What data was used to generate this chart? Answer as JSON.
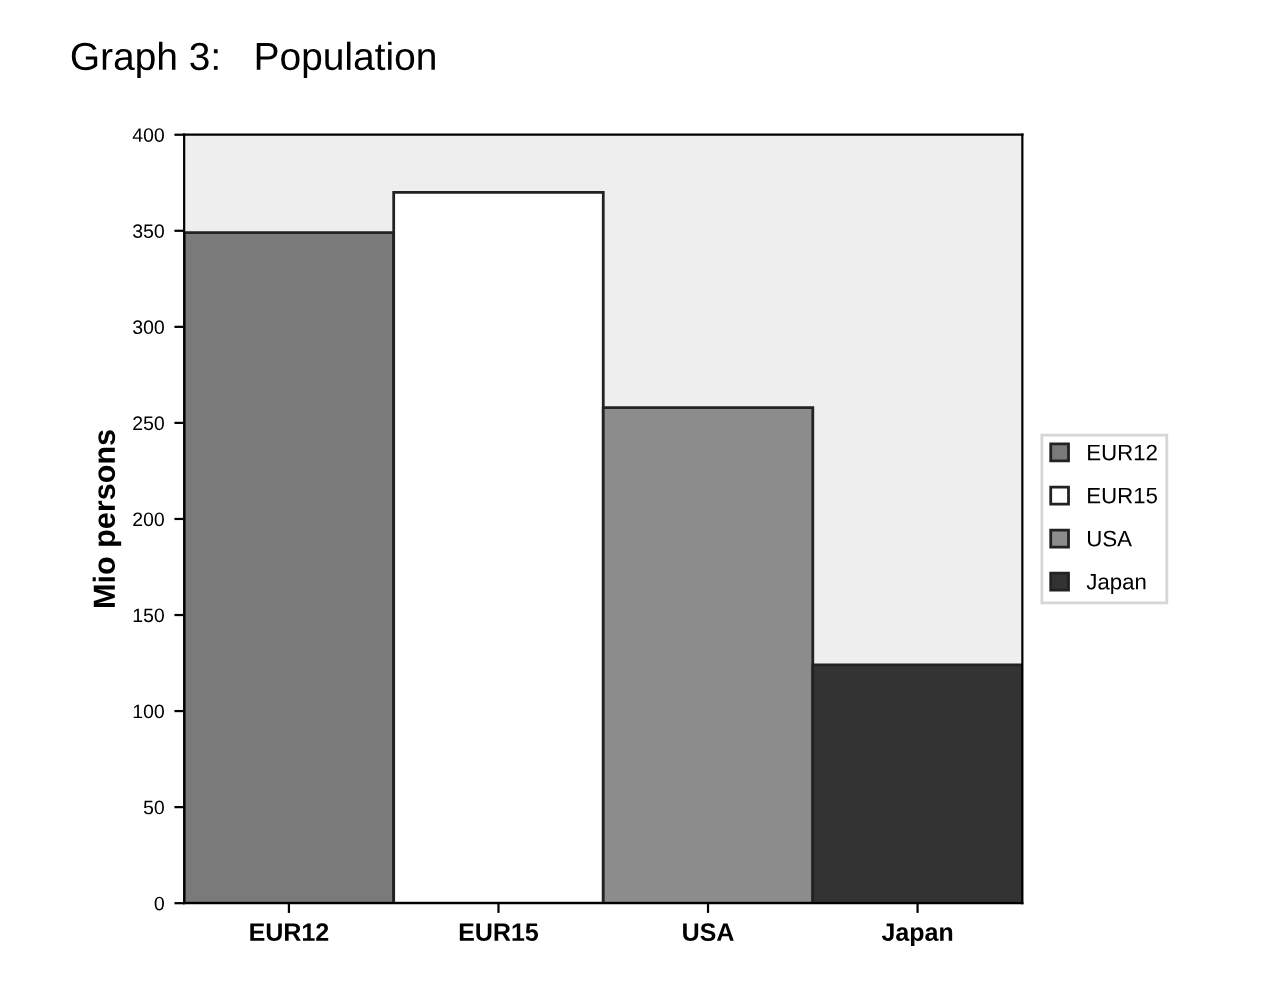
{
  "chart_data": {
    "type": "bar",
    "title": "Graph 3:   Population",
    "ylabel": "Mio persons",
    "categories": [
      "EUR12",
      "EUR15",
      "USA",
      "Japan"
    ],
    "series": [
      {
        "name": "EUR12",
        "color": "#7a7a7a",
        "values": [
          349,
          null,
          null,
          null
        ]
      },
      {
        "name": "EUR15",
        "color": "#ffffff",
        "values": [
          null,
          370,
          null,
          null
        ]
      },
      {
        "name": "USA",
        "color": "#8c8c8c",
        "values": [
          null,
          null,
          258,
          null
        ]
      },
      {
        "name": "Japan",
        "color": "#333333",
        "values": [
          null,
          null,
          null,
          124
        ]
      }
    ],
    "ylim": [
      0,
      400
    ],
    "yticks": [
      0,
      50,
      100,
      150,
      200,
      250,
      300,
      350,
      400
    ],
    "grid": false,
    "legend": "right"
  }
}
